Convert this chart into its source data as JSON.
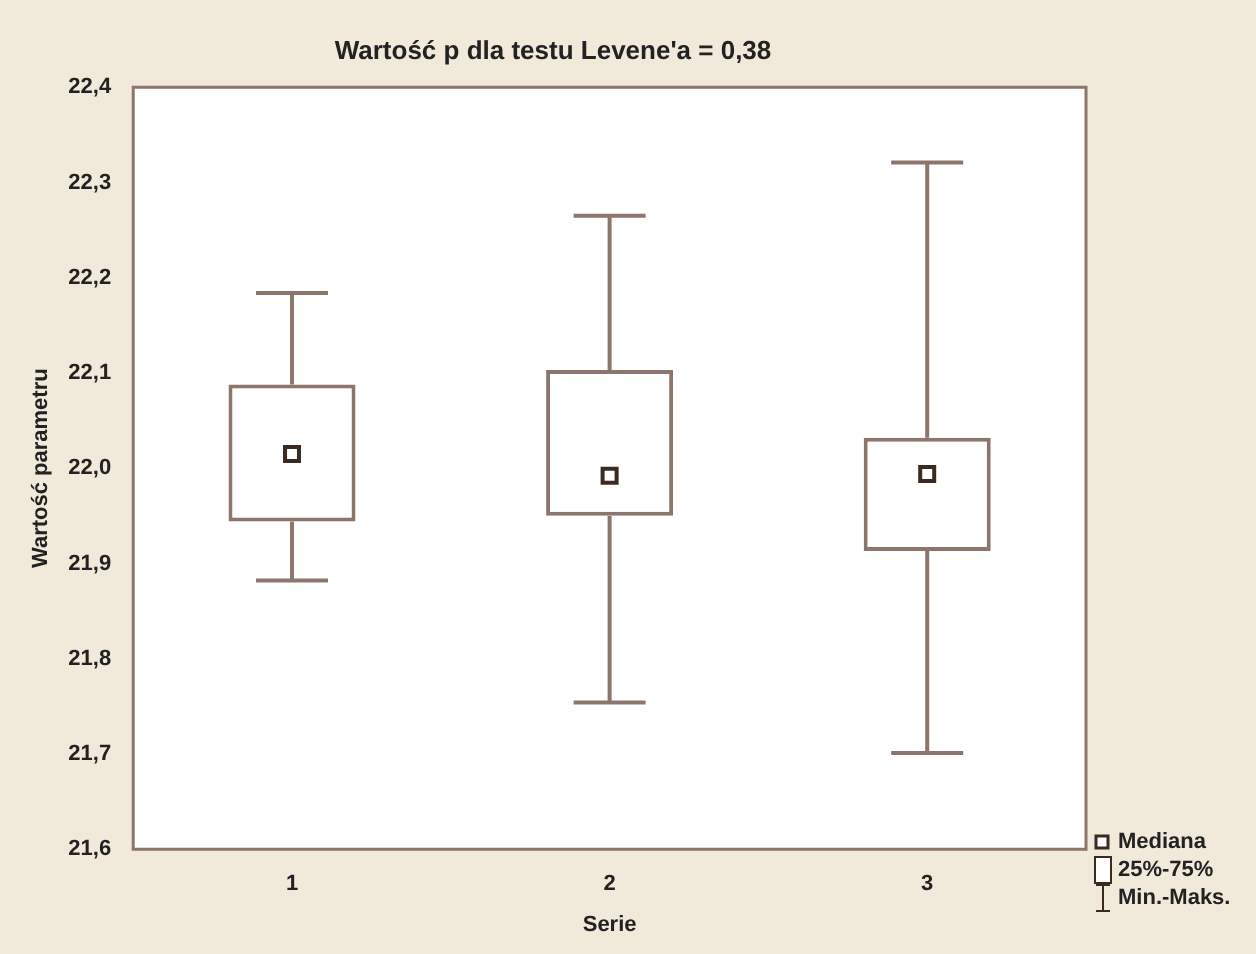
{
  "chart_data": {
    "type": "box",
    "title": "Wartość p dla testu Levene'a = 0,38",
    "xlabel": "Serie",
    "ylabel": "Wartość parametru",
    "categories": [
      "1",
      "2",
      "3"
    ],
    "color": "#8c766c",
    "boxes": [
      {
        "low": 21.882,
        "q1": 21.944,
        "median": 22.015,
        "q3": 22.088,
        "high": 22.184
      },
      {
        "low": 21.754,
        "q1": 21.95,
        "median": 21.992,
        "q3": 22.103,
        "high": 22.265
      },
      {
        "low": 21.701,
        "q1": 21.913,
        "median": 21.994,
        "q3": 22.032,
        "high": 22.321
      }
    ],
    "ylim": [
      21.6,
      22.4
    ],
    "yticks": [
      {
        "value": 21.6,
        "label": "21,6"
      },
      {
        "value": 21.7,
        "label": "21,7"
      },
      {
        "value": 21.8,
        "label": "21,8"
      },
      {
        "value": 21.9,
        "label": "21,9"
      },
      {
        "value": 22.0,
        "label": "22,0"
      },
      {
        "value": 22.1,
        "label": "22,1"
      },
      {
        "value": 22.2,
        "label": "22,2"
      },
      {
        "value": 22.3,
        "label": "22,3"
      },
      {
        "value": 22.4,
        "label": "22,4"
      }
    ],
    "annotations": [
      "Mediana",
      "25%-75%",
      "Min.-Maks."
    ]
  }
}
